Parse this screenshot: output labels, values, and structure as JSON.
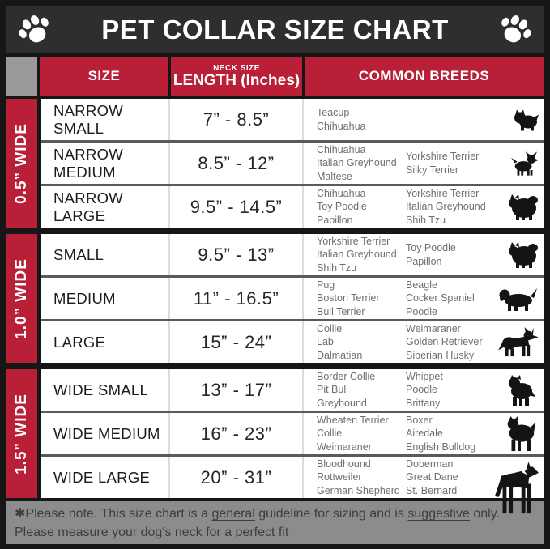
{
  "title": "PET COLLAR SIZE CHART",
  "columns": {
    "size": "SIZE",
    "neck_line1": "NECK SIZE",
    "neck_line2": "LENGTH (Inches)",
    "breeds": "COMMON BREEDS"
  },
  "groups": [
    {
      "width_label": "0.5” WIDE",
      "rows": [
        {
          "size": "NARROW SMALL",
          "length": "7” - 8.5”",
          "breeds_col1": [
            "Teacup",
            "Chihuahua"
          ],
          "breeds_col2": [],
          "icon": "yorkshire-terrier-icon"
        },
        {
          "size": "NARROW MEDIUM",
          "length": "8.5” - 12”",
          "breeds_col1": [
            "Chihuahua",
            "Italian Greyhound",
            "Maltese"
          ],
          "breeds_col2": [
            "Yorkshire Terrier",
            "Silky Terrier"
          ],
          "icon": "chihuahua-icon"
        },
        {
          "size": "NARROW LARGE",
          "length": "9.5” - 14.5”",
          "breeds_col1": [
            "Chihuahua",
            "Toy Poodle",
            "Papillon"
          ],
          "breeds_col2": [
            "Yorkshire Terrier",
            "Italian Greyhound",
            "Shih Tzu"
          ],
          "icon": "shih-tzu-icon"
        }
      ]
    },
    {
      "width_label": "1.0” WIDE",
      "rows": [
        {
          "size": "SMALL",
          "length": "9.5” - 13”",
          "breeds_col1": [
            "Yorkshire Terrier",
            "Italian Greyhound",
            "Shih Tzu"
          ],
          "breeds_col2": [
            "Toy Poodle",
            "Papillon"
          ],
          "icon": "pekingese-icon"
        },
        {
          "size": "MEDIUM",
          "length": "11” - 16.5”",
          "breeds_col1": [
            "Pug",
            "Boston Terrier",
            "Bull Terrier"
          ],
          "breeds_col2": [
            "Beagle",
            "Cocker Spaniel",
            "Poodle"
          ],
          "icon": "beagle-icon"
        },
        {
          "size": "LARGE",
          "length": "15” - 24”",
          "breeds_col1": [
            "Collie",
            "Lab",
            "Dalmatian"
          ],
          "breeds_col2": [
            "Weimaraner",
            "Golden Retriever",
            "Siberian Husky"
          ],
          "icon": "husky-icon"
        }
      ]
    },
    {
      "width_label": "1.5” WIDE",
      "rows": [
        {
          "size": "WIDE SMALL",
          "length": "13” - 17”",
          "breeds_col1": [
            "Border Collie",
            "Pit Bull",
            "Greyhound"
          ],
          "breeds_col2": [
            "Whippet",
            "Poodle",
            "Brittany"
          ],
          "icon": "pit-bull-icon"
        },
        {
          "size": "WIDE MEDIUM",
          "length": "16” - 23”",
          "breeds_col1": [
            "Wheaten Terrier",
            "Collie",
            "Weimaraner"
          ],
          "breeds_col2": [
            "Boxer",
            "Airedale",
            "English Bulldog"
          ],
          "icon": "boxer-icon"
        },
        {
          "size": "WIDE LARGE",
          "length": "20” - 31”",
          "breeds_col1": [
            "Bloodhound",
            "Rottweiler",
            "German Shepherd"
          ],
          "breeds_col2": [
            "Doberman",
            "Great Dane",
            "St. Bernard"
          ],
          "icon": "great-dane-icon"
        }
      ]
    }
  ],
  "footer": {
    "line1_part1": "✱Please note. This size chart is a ",
    "line1_underline1": "general",
    "line1_part2": " guideline for sizing and is ",
    "line1_underline2": "suggestive",
    "line1_part3": " only.",
    "line2": "Please measure your dog's neck for a perfect fit"
  },
  "colors": {
    "accent_red": "#B92038",
    "title_bar_bg": "#2E2E2E",
    "frame_black": "#161616",
    "corner_gray": "#9A9A9A",
    "footer_gray": "#8C8C8C",
    "breed_text_gray": "#6F6F6F"
  }
}
